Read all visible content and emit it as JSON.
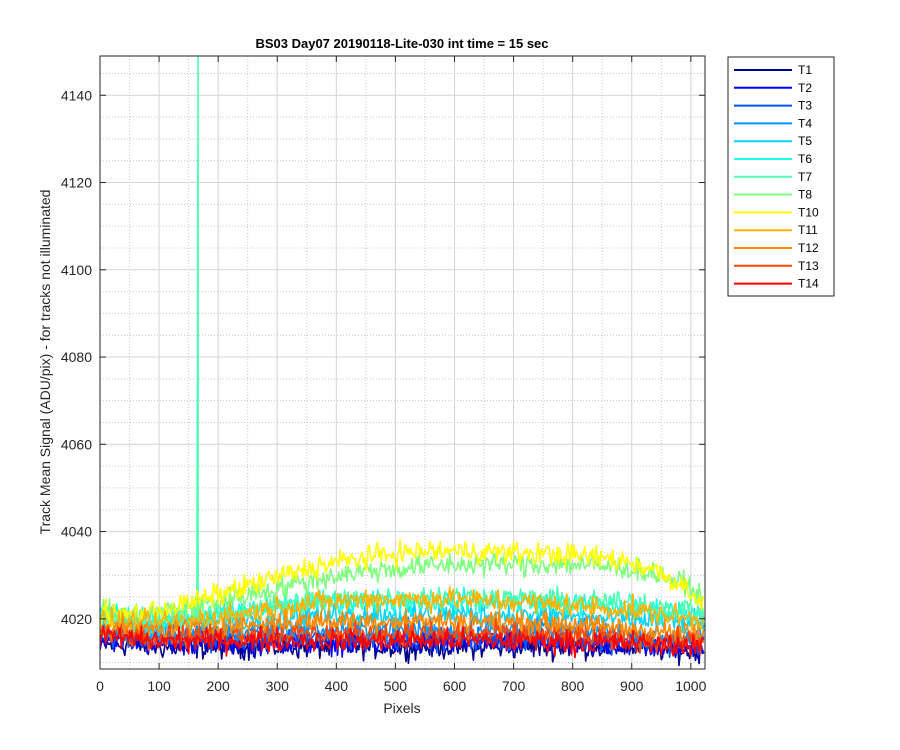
{
  "chart_data": {
    "type": "line",
    "title": "BS03 Day07 20190118-Lite-030 int time = 15 sec",
    "xlabel": "Pixels",
    "ylabel": "Track Mean Signal (ADU/pix) - for tracks not illuminated",
    "xlim": [
      0,
      1024
    ],
    "ylim": [
      4008.5,
      4149
    ],
    "xticks": [
      0,
      100,
      200,
      300,
      400,
      500,
      600,
      700,
      800,
      900,
      1000
    ],
    "yticks": [
      4020,
      4040,
      4060,
      4080,
      4100,
      4120,
      4140
    ],
    "grid": "on (major solid, minor dotted)",
    "legend_position": "outside-top-right",
    "x_sample": [
      0,
      50,
      100,
      150,
      200,
      250,
      300,
      350,
      400,
      450,
      500,
      550,
      600,
      650,
      700,
      750,
      800,
      850,
      900,
      950,
      1000,
      1024
    ],
    "series": [
      {
        "name": "T1",
        "color": "#00008f",
        "values": [
          4014,
          4014,
          4013.5,
          4013.5,
          4013.5,
          4013.5,
          4013.5,
          4013.5,
          4013.5,
          4013.5,
          4013.5,
          4013.5,
          4013.5,
          4013.5,
          4013.5,
          4013.5,
          4013.5,
          4013.5,
          4013.5,
          4013,
          4012.5,
          4012.5
        ]
      },
      {
        "name": "T2",
        "color": "#0000ff",
        "values": [
          4015.5,
          4015,
          4014.5,
          4014.5,
          4014.5,
          4014.5,
          4014.5,
          4014.5,
          4014.5,
          4014.5,
          4014.5,
          4014.5,
          4014.5,
          4014.5,
          4014.5,
          4014.5,
          4014,
          4014,
          4014,
          4013.5,
          4013.5,
          4013.5
        ]
      },
      {
        "name": "T3",
        "color": "#0055ff",
        "values": [
          4016,
          4015.5,
          4015.5,
          4015.5,
          4015.5,
          4015.5,
          4015.5,
          4015.5,
          4015.5,
          4015.5,
          4015.5,
          4015.5,
          4015.5,
          4015.5,
          4015.5,
          4015.5,
          4015.5,
          4015,
          4015,
          4014.5,
          4014.5,
          4014.5
        ]
      },
      {
        "name": "T4",
        "color": "#0095ff",
        "values": [
          4017,
          4016.5,
          4016.5,
          4016.5,
          4017,
          4017,
          4017.5,
          4017.5,
          4017.5,
          4017.5,
          4017.5,
          4017.5,
          4017.5,
          4017.5,
          4017.5,
          4017.5,
          4017,
          4017,
          4016.5,
          4016,
          4016,
          4016
        ]
      },
      {
        "name": "T5",
        "color": "#00d5ff",
        "values": [
          4019,
          4018.5,
          4018.5,
          4019,
          4019.5,
          4020,
          4020.5,
          4021,
          4021,
          4021,
          4021,
          4021,
          4021,
          4021,
          4021,
          4021,
          4020.5,
          4020,
          4020,
          4019.5,
          4019,
          4019
        ]
      },
      {
        "name": "T6",
        "color": "#1affe5",
        "values": [
          4021,
          4020,
          4020,
          4020.5,
          4021,
          4022,
          4023,
          4023.5,
          4024,
          4024,
          4024,
          4024,
          4024,
          4024,
          4024,
          4023.5,
          4023.5,
          4023,
          4022.5,
          4022,
          4021.5,
          4021
        ]
      },
      {
        "name": "T7",
        "color": "#4dffb3",
        "values": [
          4021,
          4020,
          4020,
          4020.5,
          4021,
          4022,
          4023,
          4024,
          4024.5,
          4024.5,
          4025,
          4025,
          4025,
          4025,
          4024.5,
          4024.5,
          4024,
          4024,
          4023.5,
          4023,
          4022,
          4021.5
        ]
      },
      {
        "name": "T8",
        "color": "#80ff80",
        "values": [
          4021,
          4021,
          4021.5,
          4022.5,
          4024,
          4025.5,
          4027,
          4028.5,
          4030,
          4031,
          4031.5,
          4032,
          4032.5,
          4032.5,
          4032.5,
          4032.5,
          4032.5,
          4032,
          4031.5,
          4030,
          4027,
          4024
        ]
      },
      {
        "name": "T10",
        "color": "#ffff00",
        "values": [
          4021,
          4021,
          4022,
          4023.5,
          4025.5,
          4027.5,
          4029.5,
          4031.5,
          4033,
          4034,
          4035,
          4035.5,
          4035.5,
          4035.5,
          4035,
          4035,
          4034.5,
          4034,
          4033,
          4030.5,
          4026.5,
          4023
        ]
      },
      {
        "name": "T11",
        "color": "#ffb300",
        "values": [
          4019.5,
          4019,
          4019,
          4019.5,
          4020.5,
          4021.5,
          4022.5,
          4023.5,
          4024,
          4024.5,
          4024.5,
          4024.5,
          4024.5,
          4024,
          4024,
          4023.5,
          4023,
          4022.5,
          4022,
          4021,
          4020,
          4019
        ]
      },
      {
        "name": "T12",
        "color": "#ff8a00",
        "values": [
          4018,
          4017.5,
          4017.5,
          4017.5,
          4018,
          4018.5,
          4019,
          4019.5,
          4019.5,
          4019.5,
          4019.5,
          4019.5,
          4019.5,
          4019.5,
          4019,
          4019,
          4018.5,
          4018,
          4017.5,
          4017,
          4016.5,
          4016
        ]
      },
      {
        "name": "T13",
        "color": "#ff4a00",
        "values": [
          4017,
          4016.5,
          4016,
          4016,
          4016,
          4016.5,
          4016.5,
          4016.5,
          4016.5,
          4016.5,
          4016.5,
          4016.5,
          4016.5,
          4016.5,
          4016.5,
          4016,
          4016,
          4015.5,
          4015.5,
          4015,
          4015,
          4015
        ]
      },
      {
        "name": "T14",
        "color": "#ff0000",
        "values": [
          4016,
          4015.5,
          4015,
          4015,
          4015,
          4015,
          4015,
          4015,
          4015,
          4015,
          4015,
          4015,
          4015,
          4015,
          4015,
          4015,
          4014.5,
          4014.5,
          4014.5,
          4014,
          4014,
          4014
        ]
      }
    ],
    "annotations": [
      {
        "type": "vertical-spike",
        "series": "T7",
        "x": 166,
        "y_top": 4149
      }
    ]
  }
}
